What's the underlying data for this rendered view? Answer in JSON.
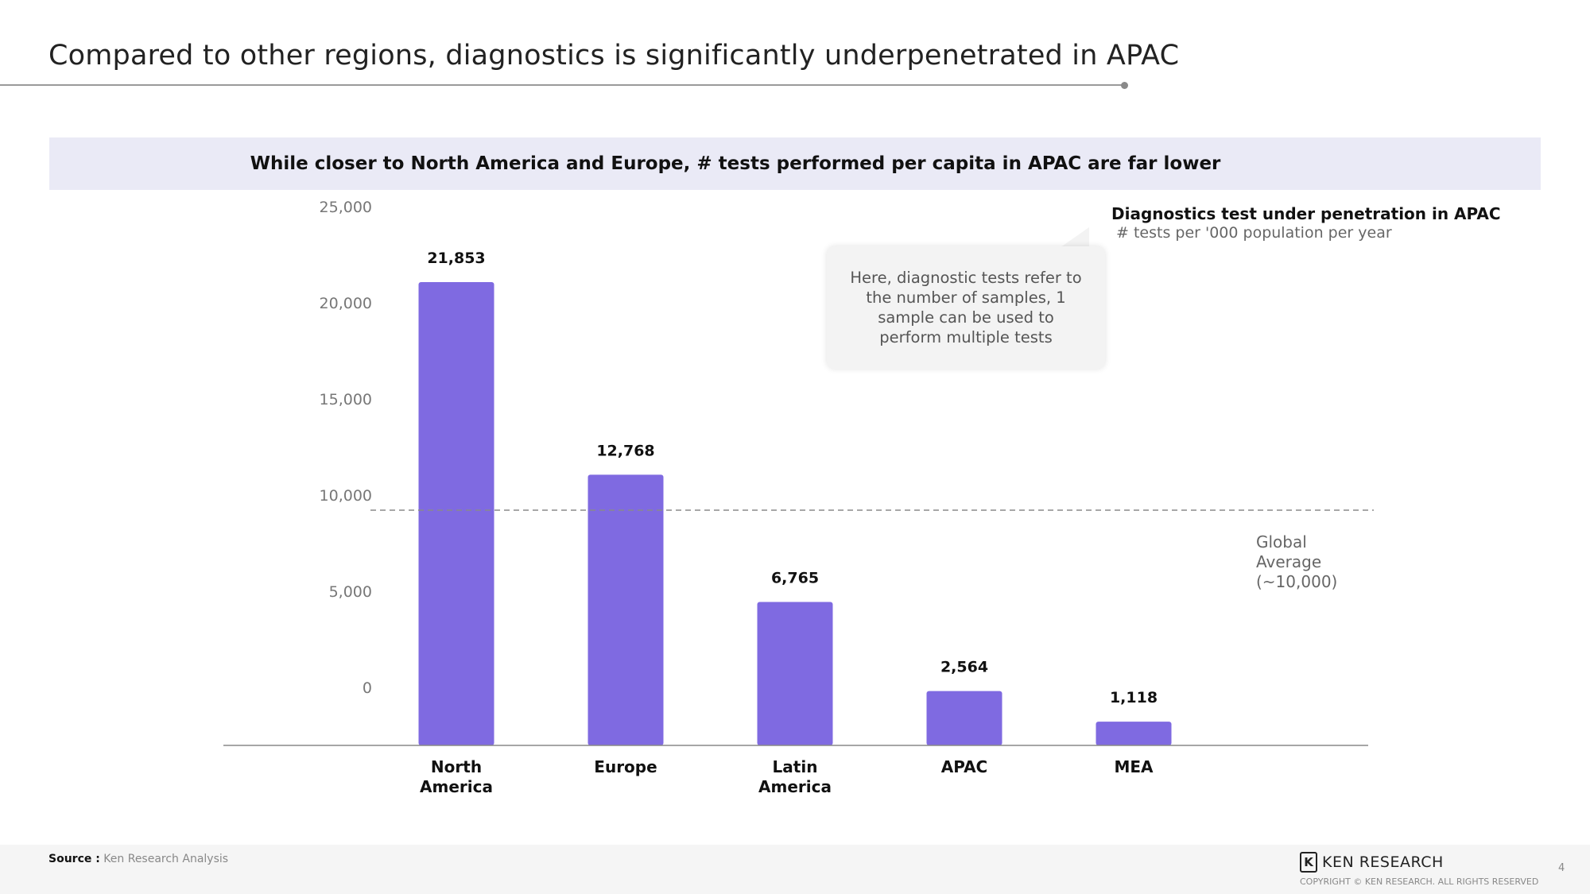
{
  "slide": {
    "title": "Compared to other regions, diagnostics is significantly underpenetrated in APAC",
    "banner": "While closer to North America and Europe, # tests performed per capita in APAC are far lower",
    "legend_title": "Diagnostics test under penetration in APAC",
    "legend_subtitle": "# tests per '000 population per year",
    "callout": "Here, diagnostic tests refer to the number of samples, 1 sample can be used to perform multiple tests",
    "average_label": "Global Average (~10,000)",
    "source_label": "Source :",
    "source_text": "Ken Research Analysis",
    "logo_text": "KEN RESEARCH",
    "copyright": "COPYRIGHT © KEN RESEARCH. ALL RIGHTS RESERVED",
    "page_number": "4"
  },
  "chart_data": {
    "type": "bar",
    "categories": [
      "North America",
      "Europe",
      "Latin America",
      "APAC",
      "MEA"
    ],
    "category_lines": [
      [
        "North",
        "America"
      ],
      [
        "Europe"
      ],
      [
        "Latin",
        "America"
      ],
      [
        "APAC"
      ],
      [
        "MEA"
      ]
    ],
    "values": [
      21853,
      12768,
      6765,
      2564,
      1118
    ],
    "value_labels": [
      "21,853",
      "12,768",
      "6,765",
      "2,564",
      "1,118"
    ],
    "y_ticks": [
      0,
      5000,
      10000,
      15000,
      20000,
      25000
    ],
    "y_tick_labels": [
      "0",
      "5,000",
      "10,000",
      "15,000",
      "20,000",
      "25,000"
    ],
    "reference_line": {
      "value": 10000,
      "style": "dashed"
    },
    "bar_color": "#7f6ae1",
    "grid": false
  }
}
